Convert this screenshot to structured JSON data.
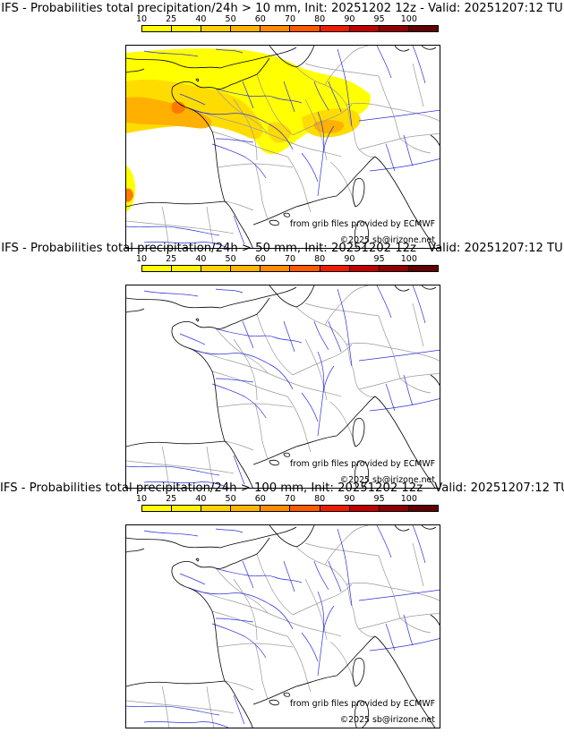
{
  "panels": [
    {
      "title": "IFS - Probabilities total precipitation/24h > 10 mm, Init: 20251202 12z - Valid: 20251207:12 TU",
      "precip_shown": true
    },
    {
      "title": "IFS - Probabilities total precipitation/24h > 50 mm, Init: 20251202 12z - Valid: 20251207:12 TU",
      "precip_shown": false
    },
    {
      "title": "IFS - Probabilities total precipitation/24h > 100 mm, Init: 20251202 12z - Valid: 20251207:12 TU",
      "precip_shown": false
    }
  ],
  "colorbar": {
    "ticks": [
      "10",
      "25",
      "40",
      "50",
      "60",
      "70",
      "80",
      "90",
      "95",
      "100"
    ],
    "colors": [
      "#ffff00",
      "#fff200",
      "#ffd200",
      "#ffb400",
      "#ff8c00",
      "#ff5a00",
      "#ee1d00",
      "#c00000",
      "#900000",
      "#600000"
    ]
  },
  "credits": {
    "source": "from grib files provided by ECMWF",
    "copyright": "©2025 sb@irizone.net"
  },
  "colors": {
    "coast": "#000000",
    "border": "#9a9a9a",
    "river": "#2f2fdc",
    "precip_light": "#ffff00",
    "precip_mid": "#ffdc00",
    "precip_heavy": "#ffb000",
    "precip_peak": "#ff7a00"
  }
}
